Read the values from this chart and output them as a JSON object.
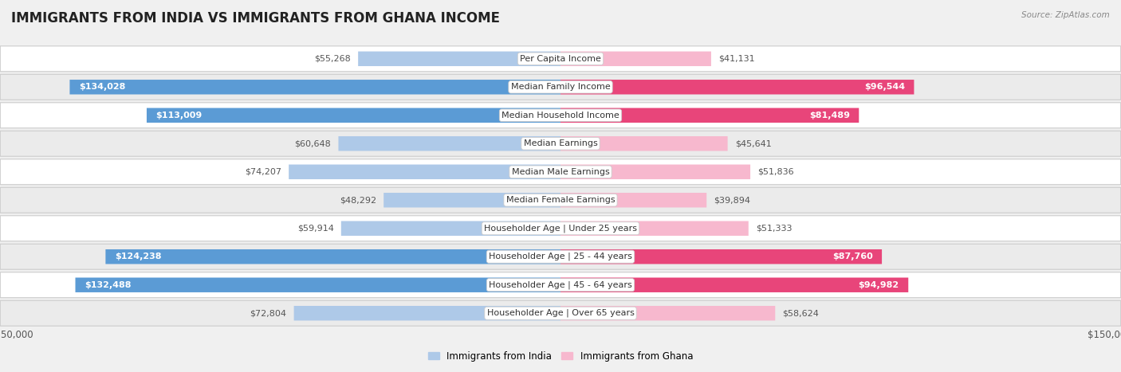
{
  "title": "IMMIGRANTS FROM INDIA VS IMMIGRANTS FROM GHANA INCOME",
  "source": "Source: ZipAtlas.com",
  "categories": [
    "Per Capita Income",
    "Median Family Income",
    "Median Household Income",
    "Median Earnings",
    "Median Male Earnings",
    "Median Female Earnings",
    "Householder Age | Under 25 years",
    "Householder Age | 25 - 44 years",
    "Householder Age | 45 - 64 years",
    "Householder Age | Over 65 years"
  ],
  "india_values": [
    55268,
    134028,
    113009,
    60648,
    74207,
    48292,
    59914,
    124238,
    132488,
    72804
  ],
  "ghana_values": [
    41131,
    96544,
    81489,
    45641,
    51836,
    39894,
    51333,
    87760,
    94982,
    58624
  ],
  "india_labels": [
    "$55,268",
    "$134,028",
    "$113,009",
    "$60,648",
    "$74,207",
    "$48,292",
    "$59,914",
    "$124,238",
    "$132,488",
    "$72,804"
  ],
  "ghana_labels": [
    "$41,131",
    "$96,544",
    "$81,489",
    "$45,641",
    "$51,836",
    "$39,894",
    "$51,333",
    "$87,760",
    "$94,982",
    "$58,624"
  ],
  "india_color_light": "#aec9e8",
  "india_color_dark": "#5b9bd5",
  "ghana_color_light": "#f7b8ce",
  "ghana_color_dark": "#e8457a",
  "india_inside_threshold": 80000,
  "ghana_inside_threshold": 70000,
  "max_value": 150000,
  "bar_height": 0.52,
  "bg_color": "#f0f0f0",
  "row_bg_color": "#ffffff",
  "row_alt_bg_color": "#ebebeb",
  "legend_india": "Immigrants from India",
  "legend_ghana": "Immigrants from Ghana",
  "title_fontsize": 12,
  "label_fontsize": 8,
  "category_fontsize": 8,
  "axis_label_fontsize": 8.5
}
